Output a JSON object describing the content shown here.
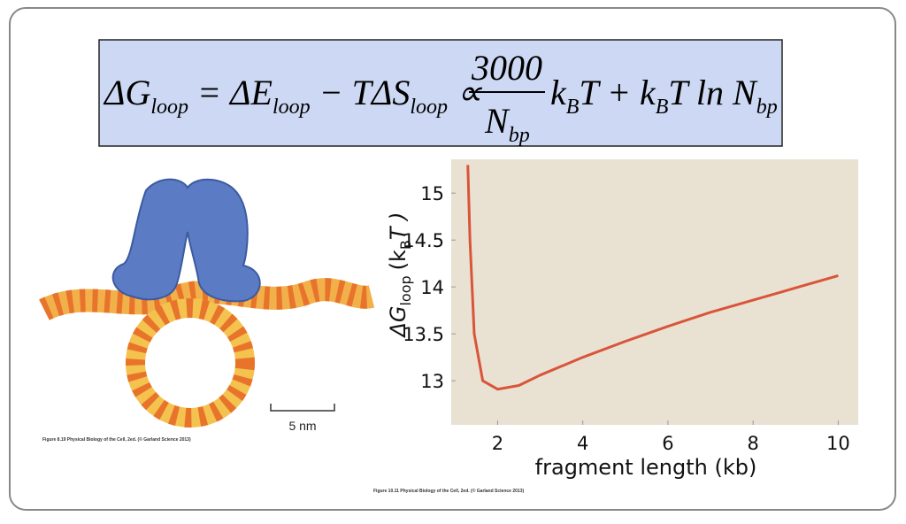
{
  "equation": {
    "parts": [
      "ΔG",
      "loop",
      " = ΔE",
      "loop",
      " − TΔS",
      "loop",
      " ∝ ",
      "3000",
      "N",
      "bp",
      "k",
      "B",
      "T + k",
      "B",
      "T ln N",
      "bp"
    ]
  },
  "left_figure": {
    "scale_bar": "5 nm",
    "caption": "Figure 8.19 Physical Biology of the Cell, 2ed. (© Garland Science 2013)"
  },
  "right_caption": "Figure 10.11 Physical Biology of the Cell, 2ed. (© Garland Science 2013)",
  "chart_data": {
    "type": "line",
    "xlabel": "fragment length (kb)",
    "ylabel": {
      "main": "ΔG",
      "sub": "loop",
      "unit": "(k",
      "unit_sub": "B",
      "unit_end": "T )"
    },
    "x": [
      1.3,
      1.35,
      1.45,
      1.65,
      2,
      2.5,
      3,
      4,
      5,
      6,
      7,
      8,
      9,
      10
    ],
    "series": [
      {
        "name": "ΔG loop",
        "color": "#d9553a",
        "values": [
          15.3,
          14.5,
          13.5,
          13.0,
          12.91,
          12.95,
          13.06,
          13.25,
          13.42,
          13.58,
          13.73,
          13.86,
          13.99,
          14.12
        ]
      }
    ],
    "xlim": [
      0.91,
      10.47
    ],
    "ylim": [
      12.53,
      15.36
    ],
    "xticks": [
      2,
      4,
      6,
      8,
      10
    ],
    "yticks": [
      13,
      13.5,
      14,
      14.5,
      15
    ],
    "background": "#e9e2d3"
  }
}
